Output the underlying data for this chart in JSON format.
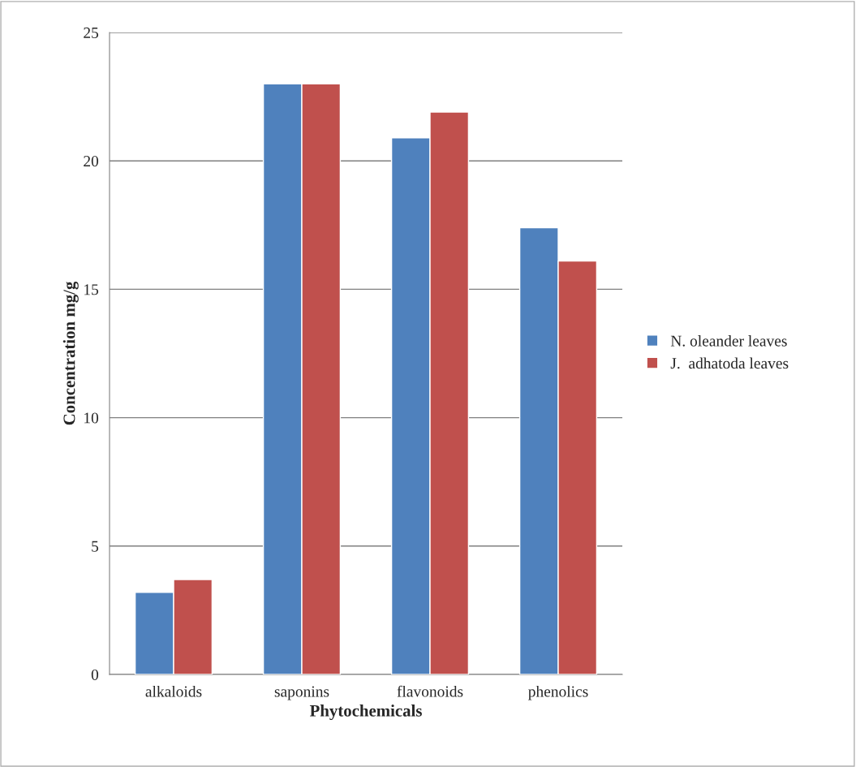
{
  "chart_data": {
    "type": "bar",
    "xlabel": "Phytochemicals",
    "ylabel": "Concentration mg/g",
    "categories": [
      "alkaloids",
      "saponins",
      "flavonoids",
      "phenolics"
    ],
    "series": [
      {
        "name": "N. oleander leaves",
        "color": "#4f81bd",
        "values": [
          3.2,
          23.0,
          20.9,
          17.4
        ]
      },
      {
        "name": "J.  adhatoda leaves",
        "color": "#c0504d",
        "values": [
          3.7,
          23.0,
          21.9,
          16.1
        ]
      }
    ],
    "ylim": [
      0,
      25
    ],
    "yticks": [
      0,
      5,
      10,
      15,
      20,
      25
    ],
    "grid": "y",
    "legend": "right"
  }
}
